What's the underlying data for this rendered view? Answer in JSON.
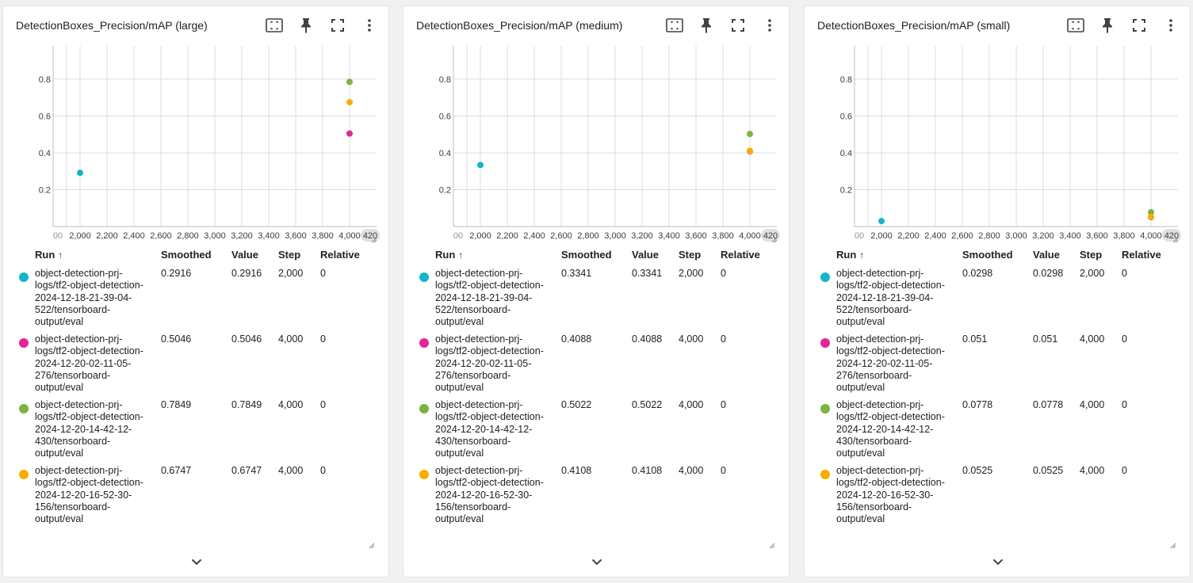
{
  "colors": {
    "run_cyan": "#12b5cb",
    "run_magenta": "#e52592",
    "run_green": "#7cb342",
    "run_orange": "#f9ab00",
    "grid": "#dddddd",
    "axis_pill": "#e0e0e0"
  },
  "icons": {
    "fit_domain": "fit-to-domain-icon",
    "pin": "pin-icon",
    "fullscreen": "fullscreen-icon",
    "more": "more-vert-icon",
    "expand": "chevron-down-icon"
  },
  "columns": {
    "run": "Run",
    "sort_arrow": "↑",
    "smoothed": "Smoothed",
    "value": "Value",
    "step": "Step",
    "relative": "Relative"
  },
  "cards": [
    {
      "title": "DetectionBoxes_Precision/mAP (large)",
      "rows": [
        {
          "name": "object-detection-prj-logs/tf2-object-detection-2024-12-18-21-39-04-522/tensorboard-output/eval",
          "smoothed": "0.2916",
          "value": "0.2916",
          "step": "2,000",
          "relative": "0"
        },
        {
          "name": "object-detection-prj-logs/tf2-object-detection-2024-12-20-02-11-05-276/tensorboard-output/eval",
          "smoothed": "0.5046",
          "value": "0.5046",
          "step": "4,000",
          "relative": "0"
        },
        {
          "name": "object-detection-prj-logs/tf2-object-detection-2024-12-20-14-42-12-430/tensorboard-output/eval",
          "smoothed": "0.7849",
          "value": "0.7849",
          "step": "4,000",
          "relative": "0"
        },
        {
          "name": "object-detection-prj-logs/tf2-object-detection-2024-12-20-16-52-30-156/tensorboard-output/eval",
          "smoothed": "0.6747",
          "value": "0.6747",
          "step": "4,000",
          "relative": "0"
        }
      ]
    },
    {
      "title": "DetectionBoxes_Precision/mAP (medium)",
      "rows": [
        {
          "name": "object-detection-prj-logs/tf2-object-detection-2024-12-18-21-39-04-522/tensorboard-output/eval",
          "smoothed": "0.3341",
          "value": "0.3341",
          "step": "2,000",
          "relative": "0"
        },
        {
          "name": "object-detection-prj-logs/tf2-object-detection-2024-12-20-02-11-05-276/tensorboard-output/eval",
          "smoothed": "0.4088",
          "value": "0.4088",
          "step": "4,000",
          "relative": "0"
        },
        {
          "name": "object-detection-prj-logs/tf2-object-detection-2024-12-20-14-42-12-430/tensorboard-output/eval",
          "smoothed": "0.5022",
          "value": "0.5022",
          "step": "4,000",
          "relative": "0"
        },
        {
          "name": "object-detection-prj-logs/tf2-object-detection-2024-12-20-16-52-30-156/tensorboard-output/eval",
          "smoothed": "0.4108",
          "value": "0.4108",
          "step": "4,000",
          "relative": "0"
        }
      ]
    },
    {
      "title": "DetectionBoxes_Precision/mAP (small)",
      "rows": [
        {
          "name": "object-detection-prj-logs/tf2-object-detection-2024-12-18-21-39-04-522/tensorboard-output/eval",
          "smoothed": "0.0298",
          "value": "0.0298",
          "step": "2,000",
          "relative": "0"
        },
        {
          "name": "object-detection-prj-logs/tf2-object-detection-2024-12-20-02-11-05-276/tensorboard-output/eval",
          "smoothed": "0.051",
          "value": "0.051",
          "step": "4,000",
          "relative": "0"
        },
        {
          "name": "object-detection-prj-logs/tf2-object-detection-2024-12-20-14-42-12-430/tensorboard-output/eval",
          "smoothed": "0.0778",
          "value": "0.0778",
          "step": "4,000",
          "relative": "0"
        },
        {
          "name": "object-detection-prj-logs/tf2-object-detection-2024-12-20-16-52-30-156/tensorboard-output/eval",
          "smoothed": "0.0525",
          "value": "0.0525",
          "step": "4,000",
          "relative": "0"
        }
      ]
    }
  ],
  "chart_data": [
    {
      "type": "scatter",
      "title": "DetectionBoxes_Precision/mAP (large)",
      "xlim": [
        1800,
        4200
      ],
      "ylim": [
        0,
        0.98
      ],
      "x_ticks": [
        2000,
        2200,
        2400,
        2600,
        2800,
        3000,
        3200,
        3400,
        3600,
        3800,
        4000
      ],
      "x_tick_labels": [
        "00",
        "2,000",
        "2,200",
        "2,400",
        "2,600",
        "2,800",
        "3,000",
        "3,200",
        "3,400",
        "3,600",
        "3,800",
        "4,000",
        "420"
      ],
      "y_ticks": [
        0.2,
        0.4,
        0.6,
        0.8
      ],
      "y_tick_labels": [
        "0.2",
        "0.4",
        "0.6",
        "0.8"
      ],
      "grid": true,
      "series": [
        {
          "color": "#12b5cb",
          "points": [
            [
              2000,
              0.2916
            ]
          ]
        },
        {
          "color": "#e52592",
          "points": [
            [
              4000,
              0.5046
            ]
          ]
        },
        {
          "color": "#7cb342",
          "points": [
            [
              4000,
              0.7849
            ]
          ]
        },
        {
          "color": "#f9ab00",
          "points": [
            [
              4000,
              0.6747
            ]
          ]
        }
      ]
    },
    {
      "type": "scatter",
      "title": "DetectionBoxes_Precision/mAP (medium)",
      "xlim": [
        1800,
        4200
      ],
      "ylim": [
        0,
        0.98
      ],
      "x_ticks": [
        2000,
        2200,
        2400,
        2600,
        2800,
        3000,
        3200,
        3400,
        3600,
        3800,
        4000
      ],
      "x_tick_labels": [
        "00",
        "2,000",
        "2,200",
        "2,400",
        "2,600",
        "2,800",
        "3,000",
        "3,200",
        "3,400",
        "3,600",
        "3,800",
        "4,000",
        "420"
      ],
      "y_ticks": [
        0.2,
        0.4,
        0.6,
        0.8
      ],
      "y_tick_labels": [
        "0.2",
        "0.4",
        "0.6",
        "0.8"
      ],
      "grid": true,
      "series": [
        {
          "color": "#12b5cb",
          "points": [
            [
              2000,
              0.3341
            ]
          ]
        },
        {
          "color": "#e52592",
          "points": [
            [
              4000,
              0.4088
            ]
          ]
        },
        {
          "color": "#7cb342",
          "points": [
            [
              4000,
              0.5022
            ]
          ]
        },
        {
          "color": "#f9ab00",
          "points": [
            [
              4000,
              0.4108
            ]
          ]
        }
      ]
    },
    {
      "type": "scatter",
      "title": "DetectionBoxes_Precision/mAP (small)",
      "xlim": [
        1800,
        4200
      ],
      "ylim": [
        0,
        0.98
      ],
      "x_ticks": [
        2000,
        2200,
        2400,
        2600,
        2800,
        3000,
        3200,
        3400,
        3600,
        3800,
        4000
      ],
      "x_tick_labels": [
        "00",
        "2,000",
        "2,200",
        "2,400",
        "2,600",
        "2,800",
        "3,000",
        "3,200",
        "3,400",
        "3,600",
        "3,800",
        "4,000",
        "420"
      ],
      "y_ticks": [
        0.2,
        0.4,
        0.6,
        0.8
      ],
      "y_tick_labels": [
        "0.2",
        "0.4",
        "0.6",
        "0.8"
      ],
      "grid": true,
      "series": [
        {
          "color": "#12b5cb",
          "points": [
            [
              2000,
              0.0298
            ]
          ]
        },
        {
          "color": "#e52592",
          "points": [
            [
              4000,
              0.051
            ]
          ]
        },
        {
          "color": "#7cb342",
          "points": [
            [
              4000,
              0.0778
            ]
          ]
        },
        {
          "color": "#f9ab00",
          "points": [
            [
              4000,
              0.0525
            ]
          ]
        }
      ]
    }
  ]
}
